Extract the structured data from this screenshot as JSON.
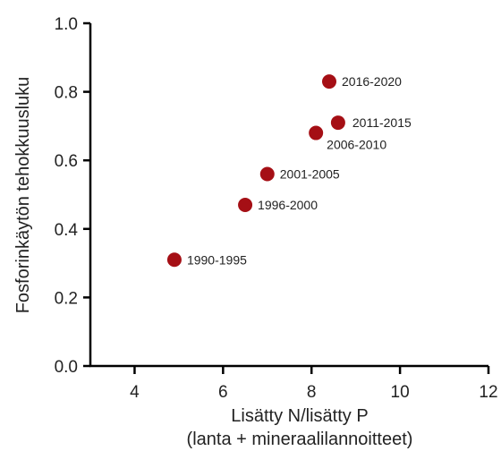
{
  "chart_data": {
    "type": "scatter",
    "title": "",
    "xlabel": [
      "Lisätty N/lisätty P",
      "(lanta + mineraalilannoitteet)"
    ],
    "ylabel": "Fosforinkäytön tehokkuusluku",
    "xlim": [
      3,
      12
    ],
    "ylim": [
      0,
      1
    ],
    "xticks": [
      "4",
      "6",
      "8",
      "10",
      "12"
    ],
    "yticks": [
      "0.0",
      "0.2",
      "0.4",
      "0.6",
      "0.8",
      "1.0"
    ],
    "grid": false,
    "legend": "none",
    "marker_color": "#a50f15",
    "points": [
      {
        "label": "1990-1995",
        "x": 4.9,
        "y": 0.31
      },
      {
        "label": "1996-2000",
        "x": 6.5,
        "y": 0.47
      },
      {
        "label": "2001-2005",
        "x": 7.0,
        "y": 0.56
      },
      {
        "label": "2006-2010",
        "x": 8.1,
        "y": 0.68
      },
      {
        "label": "2011-2015",
        "x": 8.6,
        "y": 0.71
      },
      {
        "label": "2016-2020",
        "x": 8.4,
        "y": 0.83
      }
    ]
  }
}
